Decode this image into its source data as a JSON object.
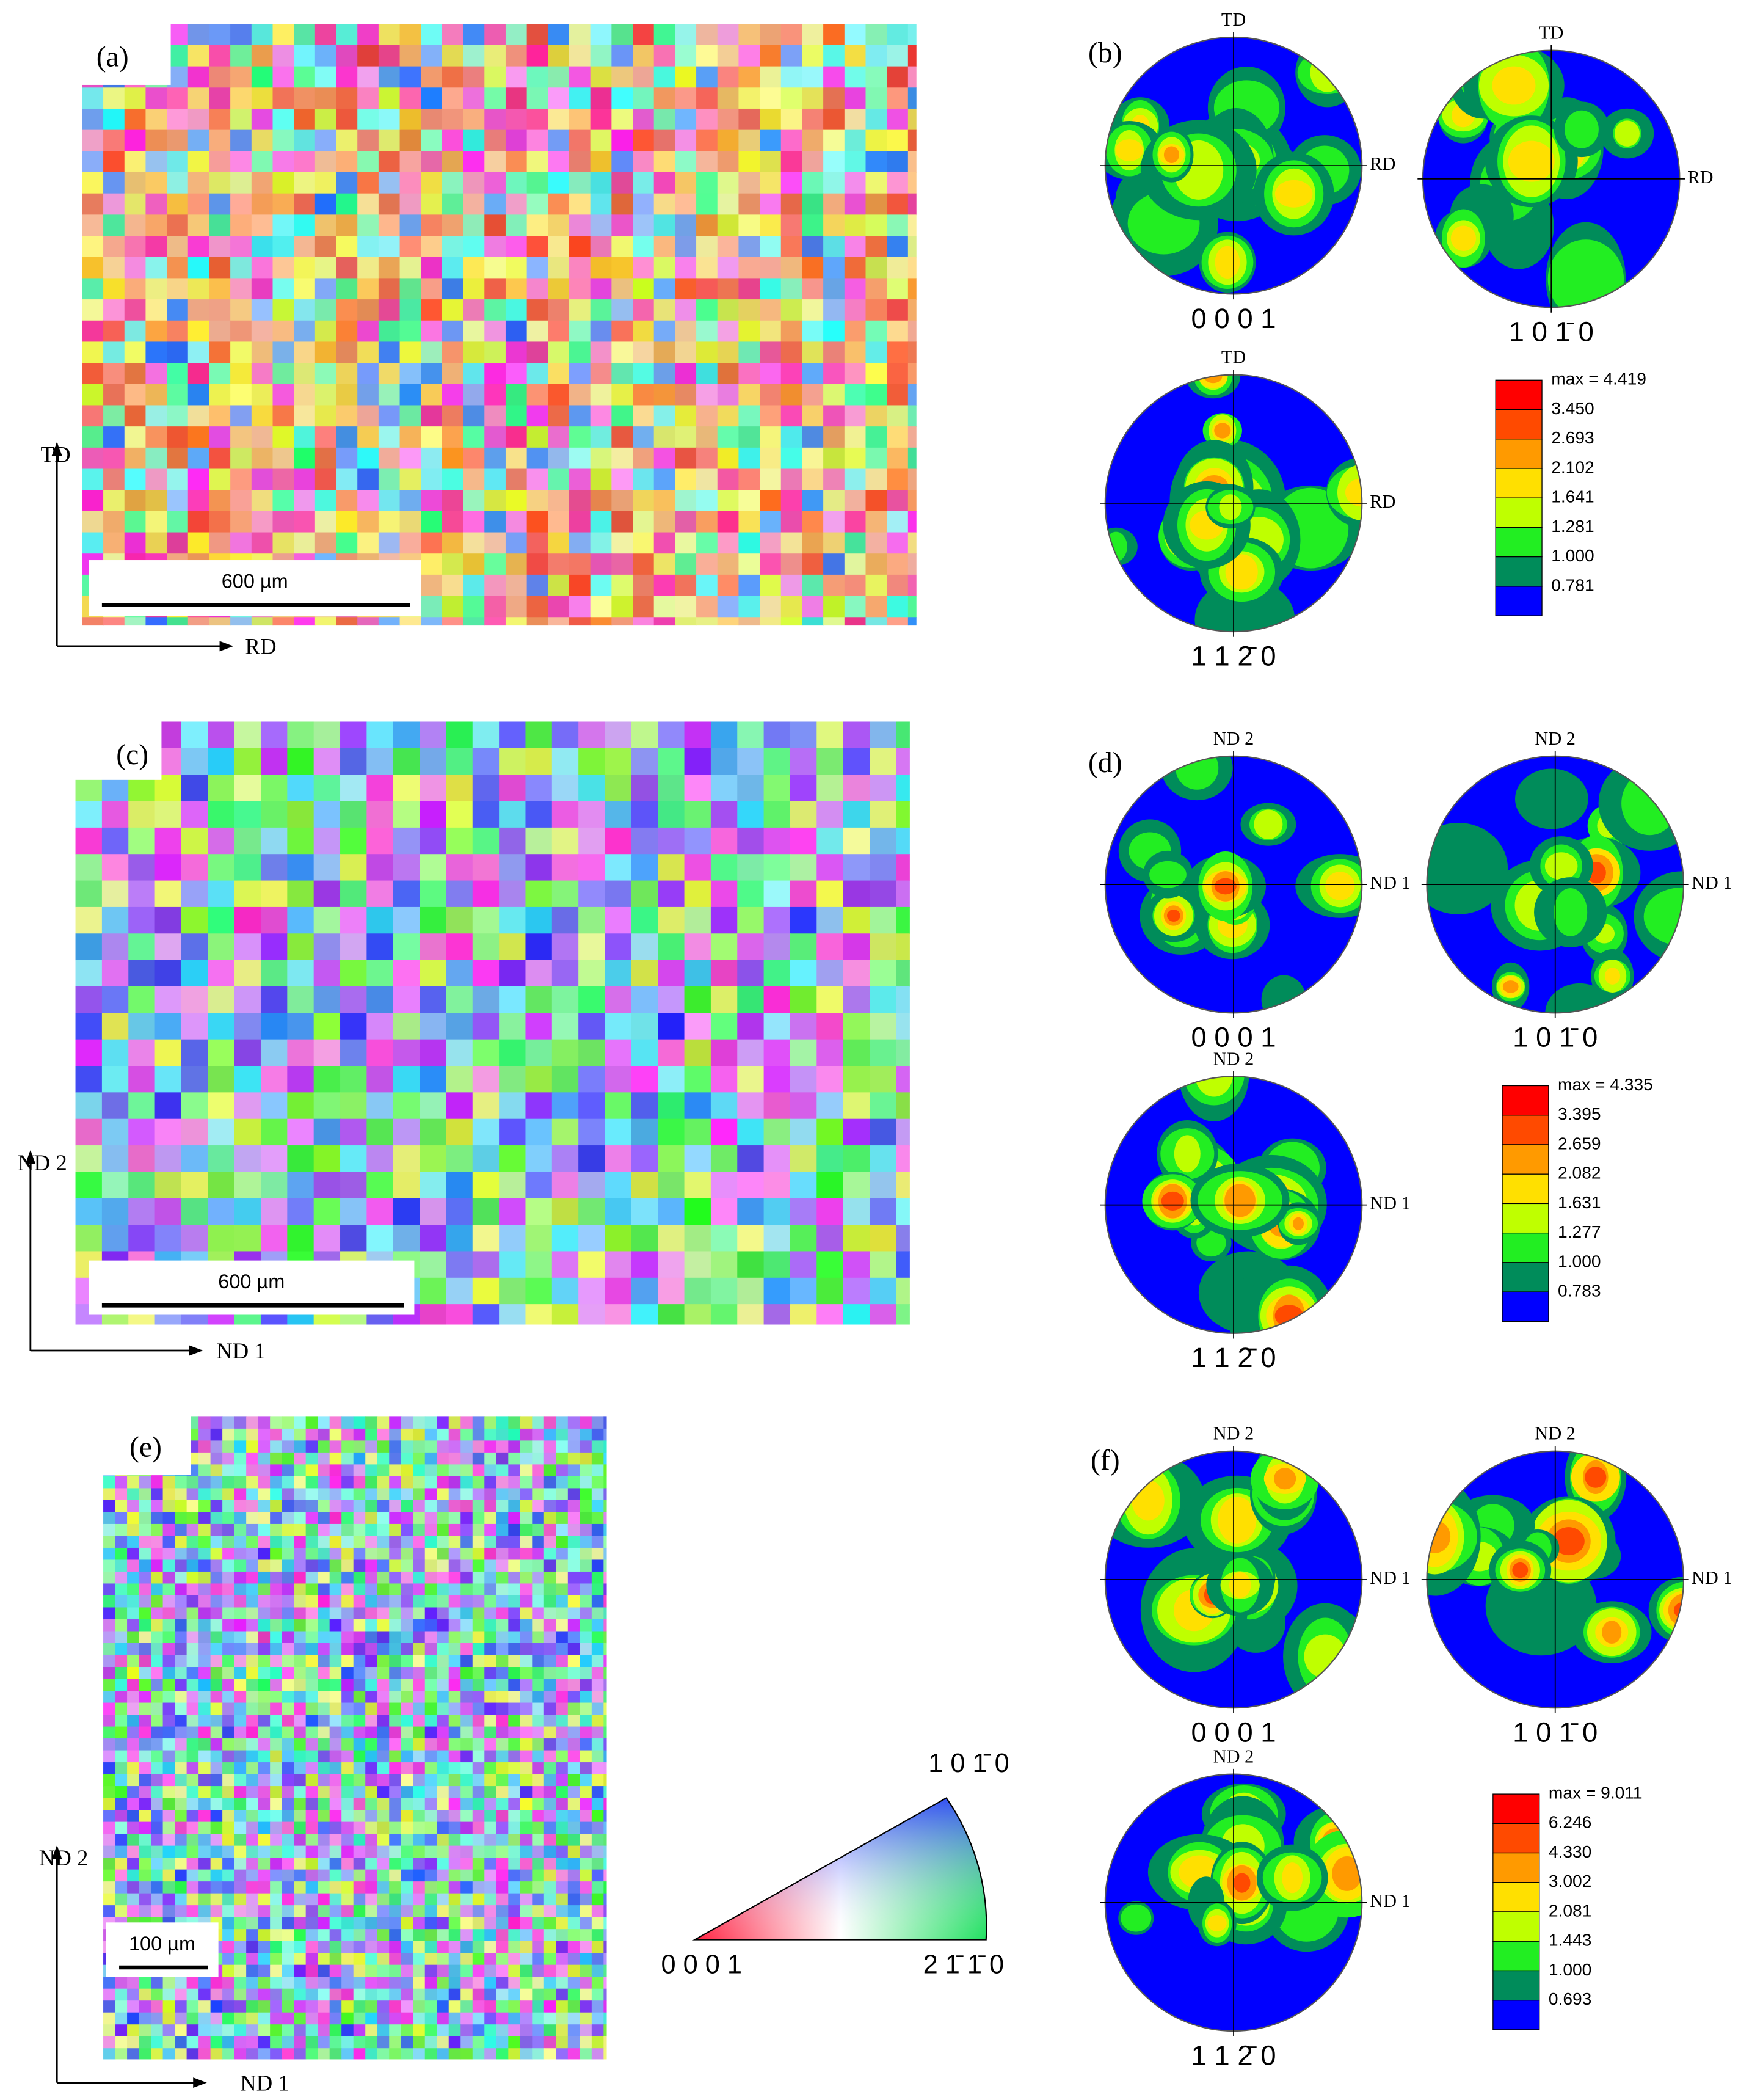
{
  "panels": [
    {
      "label": "(a)",
      "scale_bar": "600 µm",
      "axis_vertical": "TD",
      "axis_horizontal": "RD"
    },
    {
      "label": "(b)",
      "pole_figures": [
        {
          "plane": "0 0 0 1",
          "top": "TD",
          "right": "RD"
        },
        {
          "plane": "1 0 1̄ 0",
          "top": "TD",
          "right": "RD"
        },
        {
          "plane": "1 1 2̄ 0",
          "top": "TD",
          "right": "RD"
        }
      ],
      "legend": {
        "max": "max = 4.419",
        "levels": [
          "3.450",
          "2.693",
          "2.102",
          "1.641",
          "1.281",
          "1.000",
          "0.781"
        ]
      }
    },
    {
      "label": "(c)",
      "scale_bar": "600 µm",
      "axis_vertical": "ND 2",
      "axis_horizontal": "ND 1"
    },
    {
      "label": "(d)",
      "pole_figures": [
        {
          "plane": "0 0 0 1",
          "top": "ND 2",
          "right": "ND 1"
        },
        {
          "plane": "1 0 1̄ 0",
          "top": "ND 2",
          "right": "ND 1"
        },
        {
          "plane": "1 1 2̄ 0",
          "top": "ND 2",
          "right": "ND 1"
        }
      ],
      "legend": {
        "max": "max = 4.335",
        "levels": [
          "3.395",
          "2.659",
          "2.082",
          "1.631",
          "1.277",
          "1.000",
          "0.783"
        ]
      }
    },
    {
      "label": "(e)",
      "scale_bar": "100 µm",
      "axis_vertical": "ND 2",
      "axis_horizontal": "ND 1"
    },
    {
      "label": "(f)",
      "pole_figures": [
        {
          "plane": "0 0 0 1",
          "top": "ND 2",
          "right": "ND 1"
        },
        {
          "plane": "1 0 1̄ 0",
          "top": "ND 2",
          "right": "ND 1"
        },
        {
          "plane": "1 1 2̄ 0",
          "top": "ND 2",
          "right": "ND 1"
        }
      ],
      "legend": {
        "max": "max = 9.011",
        "levels": [
          "6.246",
          "4.330",
          "3.002",
          "2.081",
          "1.443",
          "1.000",
          "0.693"
        ]
      }
    }
  ],
  "ipf_triangle": {
    "corners": [
      "0 0 0 1",
      "1 0 1̄ 0",
      "2 1̄ 1̄ 0"
    ]
  }
}
